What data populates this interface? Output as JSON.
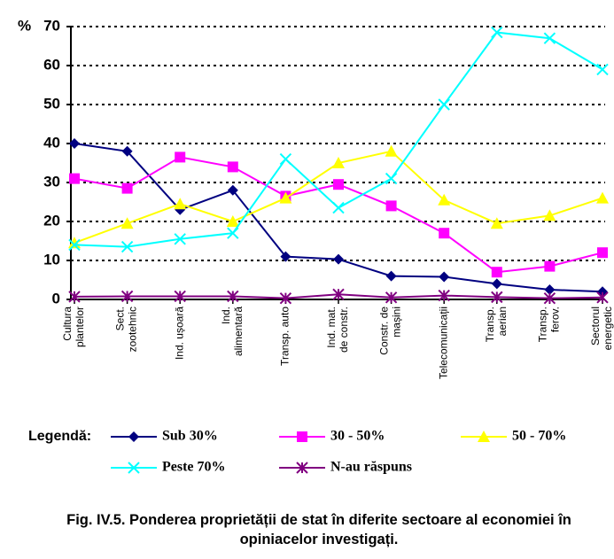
{
  "chart_data": {
    "type": "line",
    "title": "Fig. IV.5. Ponderea proprietății de stat în diferite sectoare al economiei în opiniacelor investigați.",
    "y_label": "%",
    "legend_title": "Legendă:",
    "categories": [
      "Cultura plantelor",
      "Sect. zootehnic",
      "Ind. ușoară",
      "Ind. alimentară",
      "Transp. auto",
      "Ind. mat. de constr.",
      "Constr. de mașini",
      "Telecomunicații",
      "Transp. aerian",
      "Transp. ferov.",
      "Sectorul energetic"
    ],
    "series": [
      {
        "name": "Sub 30%",
        "color": "#000080",
        "marker": "diamond",
        "values": [
          40,
          38,
          23,
          28,
          11,
          10.3,
          6,
          5.8,
          4,
          2.5,
          2
        ]
      },
      {
        "name": "30 - 50%",
        "color": "#ff00ff",
        "marker": "square",
        "values": [
          31,
          28.5,
          36.5,
          34,
          26.5,
          29.5,
          24,
          17,
          7,
          8.5,
          12
        ]
      },
      {
        "name": "50 - 70%",
        "color": "#ffff00",
        "marker": "triangle",
        "values": [
          14.5,
          19.5,
          24.5,
          20,
          26,
          35,
          38,
          25.5,
          19.5,
          21.5,
          26
        ]
      },
      {
        "name": "Peste 70%",
        "color": "#00ffff",
        "marker": "x",
        "values": [
          14,
          13.5,
          15.5,
          17,
          36,
          23.5,
          31,
          50,
          68.5,
          67,
          59
        ]
      },
      {
        "name": "N-au răspuns",
        "color": "#800080",
        "marker": "star",
        "values": [
          0.7,
          0.8,
          0.8,
          0.8,
          0.3,
          1.3,
          0.5,
          1,
          0.6,
          0.3,
          0.5
        ]
      }
    ],
    "ylim": [
      0,
      70
    ],
    "yticks": [
      0,
      10,
      20,
      30,
      40,
      50,
      60,
      70
    ],
    "grid": true
  }
}
